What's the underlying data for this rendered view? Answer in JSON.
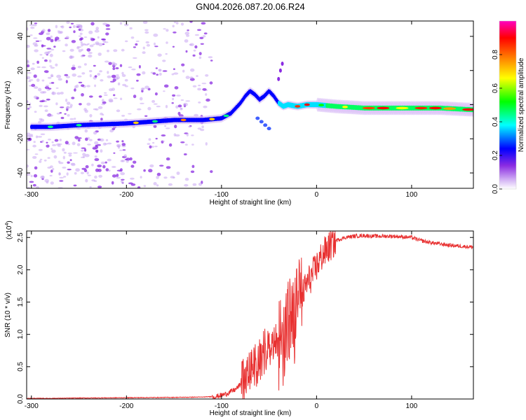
{
  "title": "GN04.2026.087.20.06.R24",
  "chart_data": [
    {
      "type": "heatmap",
      "name": "spectrogram",
      "title": "GN04.2026.087.20.06.R24",
      "xlabel": "Height of straight line (km)",
      "ylabel": "Frequency (Hz)",
      "xlim": [
        -305,
        165
      ],
      "ylim": [
        -49,
        49
      ],
      "x_ticks": [
        -300,
        -200,
        -100,
        0,
        100
      ],
      "x_tick_labels": [
        "-300",
        "-200",
        "-100",
        "0",
        "100"
      ],
      "y_ticks": [
        -40,
        -20,
        0,
        20,
        40
      ],
      "y_tick_labels": [
        "-40",
        "-20",
        "0",
        "20",
        "40"
      ],
      "colorbar": {
        "label": "Normalized spectral amplitude",
        "range": [
          0,
          1
        ],
        "ticks": [
          0.0,
          0.2,
          0.4,
          0.6,
          0.8
        ],
        "tick_labels": [
          "0.0",
          "0.2",
          "0.4",
          "0.6",
          "0.8"
        ],
        "colors": [
          "#ffffff",
          "#c8a0f0",
          "#8a2be2",
          "#0000ff",
          "#00ffff",
          "#00ff00",
          "#ffff00",
          "#ff8000",
          "#ff0000",
          "#ff00c0"
        ]
      },
      "ridge": {
        "x": [
          -300,
          -280,
          -250,
          -200,
          -150,
          -120,
          -100,
          -90,
          -80,
          -75,
          -70,
          -65,
          -60,
          -55,
          -50,
          -45,
          -40,
          -35,
          -30,
          -20,
          -10,
          0,
          20,
          50,
          80,
          100,
          130,
          165
        ],
        "frequency": [
          -13,
          -13,
          -12,
          -11,
          -9,
          -9,
          -8,
          -5,
          1,
          5,
          8,
          6,
          3,
          5,
          8,
          5,
          1,
          -1,
          0,
          -1,
          0,
          0,
          -1,
          -2,
          -2,
          -2,
          -2,
          -3
        ]
      }
    },
    {
      "type": "line",
      "name": "snr",
      "xlabel": "Height of straight line (km)",
      "ylabel": "SNR (10 * v/v)",
      "y_multiplier_label": "(x10",
      "y_multiplier_exponent": "4",
      "xlim": [
        -305,
        165
      ],
      "ylim": [
        0,
        2.6
      ],
      "x_ticks": [
        -300,
        -200,
        -100,
        0,
        100
      ],
      "x_tick_labels": [
        "-300",
        "-200",
        "-100",
        "0",
        "100"
      ],
      "y_ticks": [
        0.0,
        0.5,
        1.0,
        1.5,
        2.0,
        2.5
      ],
      "y_tick_labels": [
        "0.0",
        "0.5",
        "1.0",
        "1.5",
        "2.0",
        "2.5"
      ],
      "color": "#e83030",
      "series": [
        {
          "name": "SNR",
          "x": [
            -305,
            -280,
            -250,
            -200,
            -150,
            -120,
            -105,
            -95,
            -85,
            -75,
            -65,
            -60,
            -55,
            -50,
            -45,
            -40,
            -35,
            -30,
            -25,
            -20,
            -15,
            -10,
            -5,
            0,
            5,
            10,
            20,
            30,
            40,
            50,
            60,
            80,
            100,
            110,
            120,
            140,
            165
          ],
          "y": [
            0.01,
            0.01,
            0.015,
            0.02,
            0.025,
            0.03,
            0.04,
            0.08,
            0.15,
            0.3,
            0.5,
            0.6,
            0.7,
            0.75,
            0.8,
            0.9,
            1.0,
            1.2,
            1.1,
            1.3,
            1.6,
            1.8,
            1.9,
            2.05,
            2.2,
            2.3,
            2.45,
            2.5,
            2.52,
            2.53,
            2.52,
            2.52,
            2.5,
            2.45,
            2.42,
            2.38,
            2.35
          ]
        }
      ]
    }
  ]
}
